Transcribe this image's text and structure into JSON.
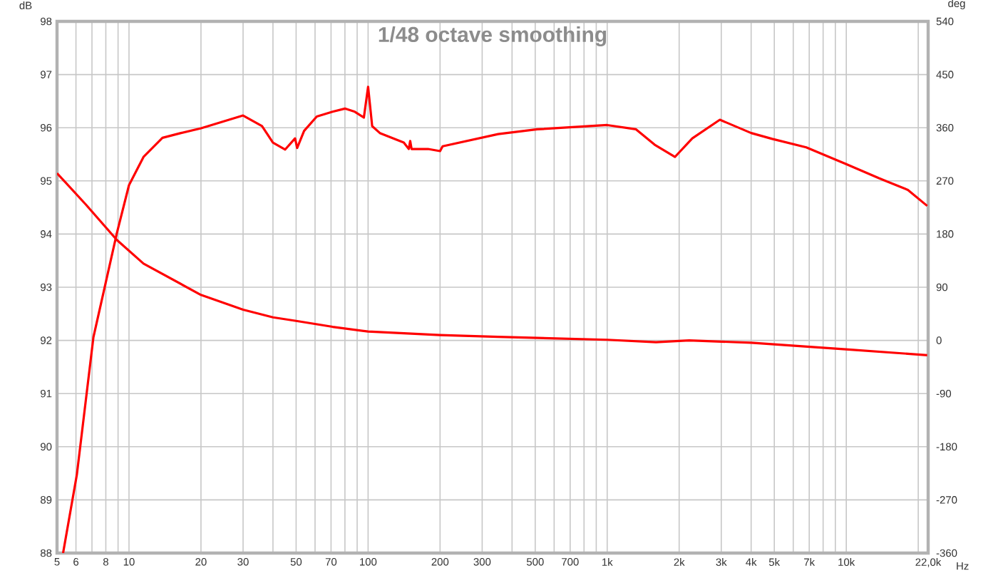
{
  "chart_data": {
    "type": "line",
    "title": "1/48 octave smoothing",
    "xlabel": "Hz",
    "ylabel": "dB",
    "y2label": "deg",
    "log": "x",
    "grid": true,
    "line_style": "solid",
    "xlim": [
      5,
      22000
    ],
    "ylim": [
      88,
      98
    ],
    "y2lim": [
      -360,
      540
    ],
    "xticks": [
      5,
      6,
      {
        "value": 7,
        "label": null
      },
      8,
      {
        "value": 9,
        "label": null
      },
      10,
      20,
      30,
      {
        "value": 40,
        "label": null
      },
      50,
      {
        "value": 60,
        "label": null
      },
      70,
      {
        "value": 80,
        "label": null
      },
      {
        "value": 90,
        "label": null
      },
      100,
      200,
      300,
      {
        "value": 400,
        "label": null
      },
      500,
      {
        "value": 600,
        "label": null
      },
      700,
      {
        "value": 800,
        "label": null
      },
      {
        "value": 900,
        "label": null
      },
      {
        "value": 1000,
        "label": "1k"
      },
      {
        "value": 2000,
        "label": "2k"
      },
      {
        "value": 3000,
        "label": "3k"
      },
      {
        "value": 4000,
        "label": "4k"
      },
      {
        "value": 5000,
        "label": "5k"
      },
      {
        "value": 6000,
        "label": null
      },
      {
        "value": 7000,
        "label": "7k"
      },
      {
        "value": 8000,
        "label": null
      },
      {
        "value": 9000,
        "label": null
      },
      {
        "value": 10000,
        "label": "10k"
      },
      {
        "value": 20000,
        "label": null
      },
      {
        "value": 22000,
        "label": "22,0k"
      }
    ],
    "yticks": [
      88,
      89,
      90,
      91,
      92,
      93,
      94,
      95,
      96,
      97,
      98
    ],
    "y2ticks": [
      -360,
      -270,
      -180,
      -90,
      0,
      90,
      180,
      270,
      360,
      450,
      540
    ],
    "series": [
      {
        "color": "#ff0000",
        "axis": "y",
        "x": [
          5.3,
          6.05,
          7.1,
          8.9,
          10,
          11.5,
          13.8,
          16.5,
          20,
          30,
          36,
          40,
          45,
          49.5,
          50.5,
          54,
          61,
          71,
          80,
          88,
          96,
          100,
          104,
          112,
          141,
          148,
          150,
          152,
          178,
          200,
          205,
          350,
          510,
          1000,
          1320,
          1580,
          1920,
          2270,
          2960,
          4000,
          4900,
          6800,
          9950,
          13700,
          18100,
          21800
        ],
        "values": [
          88,
          89.47,
          92.06,
          94.02,
          94.92,
          95.45,
          95.81,
          95.9,
          95.99,
          96.23,
          96.03,
          95.72,
          95.59,
          95.8,
          95.62,
          95.94,
          96.21,
          96.3,
          96.36,
          96.3,
          96.19,
          96.77,
          96.03,
          95.9,
          95.72,
          95.6,
          95.75,
          95.6,
          95.6,
          95.56,
          95.65,
          95.88,
          95.97,
          96.05,
          95.97,
          95.68,
          95.45,
          95.8,
          96.15,
          95.9,
          95.79,
          95.63,
          95.32,
          95.05,
          94.83,
          94.53
        ]
      },
      {
        "color": "#ff0000",
        "axis": "y2",
        "x": [
          5,
          6.6,
          8.9,
          11.5,
          20,
          30,
          40,
          50,
          71,
          100,
          200,
          350,
          1000,
          1600,
          2200,
          4000,
          9950,
          21800
        ],
        "values": [
          283,
          230,
          170,
          130,
          77,
          52,
          39,
          33,
          23,
          15,
          9,
          6,
          1,
          -3,
          0,
          -4,
          -15,
          -25
        ]
      }
    ]
  }
}
